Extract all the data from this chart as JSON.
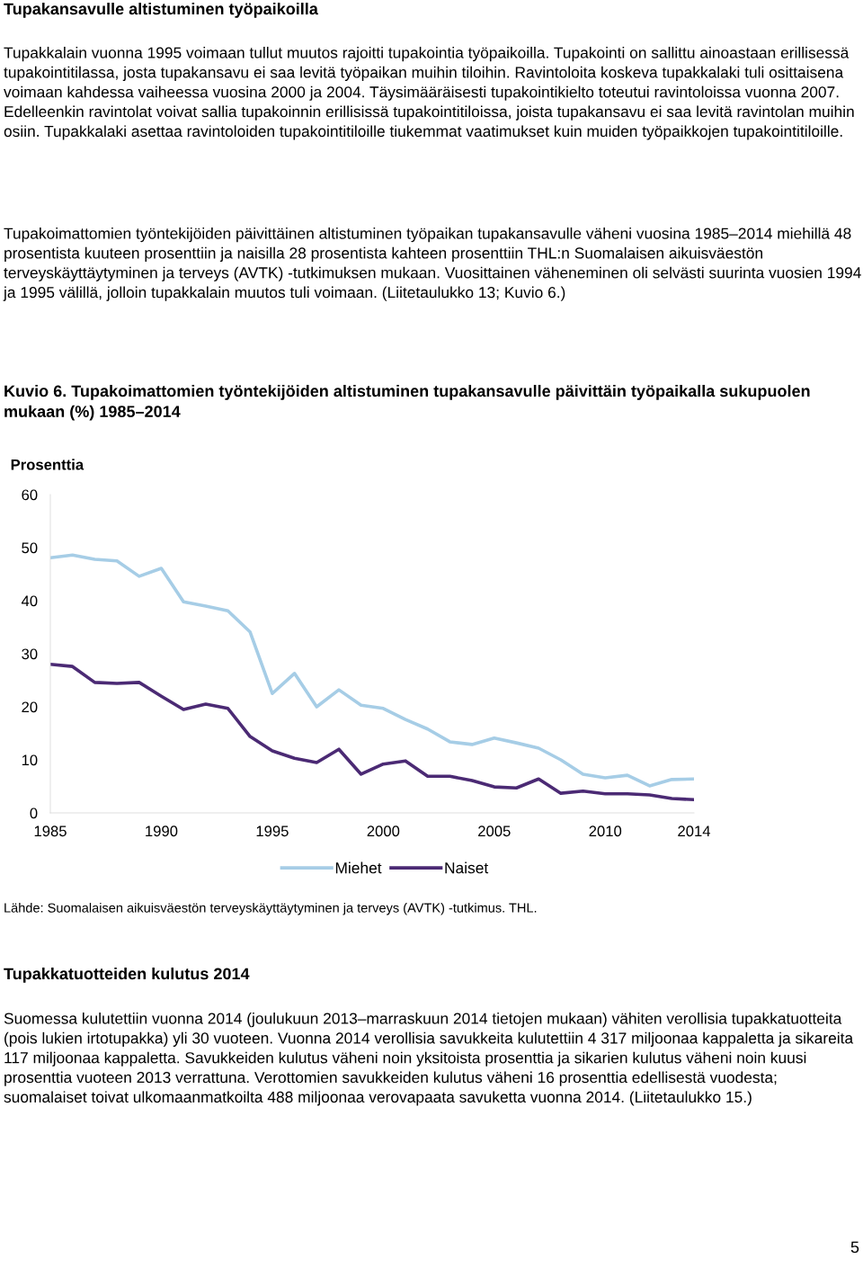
{
  "chart_data": {
    "type": "line",
    "title": "Kuvio 6. Tupakoimattomien työntekijöiden altistuminen tupakansavulle päivittäin työpaikalla sukupuolen mukaan (%) 1985–2014",
    "ylabel": "Prosenttia",
    "x": [
      1985,
      1986,
      1987,
      1988,
      1989,
      1990,
      1991,
      1992,
      1993,
      1994,
      1995,
      1996,
      1997,
      1998,
      1999,
      2000,
      2001,
      2002,
      2003,
      2004,
      2005,
      2006,
      2007,
      2008,
      2009,
      2010,
      2011,
      2012,
      2013,
      2014
    ],
    "series": [
      {
        "name": "Miehet",
        "color": "#a6cde6",
        "values": [
          48.1,
          48.6,
          47.8,
          47.5,
          44.6,
          46.1,
          39.8,
          39.0,
          38.1,
          34.1,
          22.5,
          26.3,
          20.0,
          23.2,
          20.3,
          19.7,
          17.6,
          15.8,
          13.4,
          12.9,
          14.1,
          13.2,
          12.2,
          10.0,
          7.3,
          6.6,
          7.1,
          5.1,
          6.3,
          6.4
        ]
      },
      {
        "name": "Naiset",
        "color": "#4b2a74",
        "values": [
          28.0,
          27.6,
          24.6,
          24.4,
          24.6,
          22.0,
          19.5,
          20.5,
          19.7,
          14.4,
          11.7,
          10.3,
          9.5,
          12.0,
          7.3,
          9.2,
          9.8,
          6.9,
          6.9,
          6.1,
          4.9,
          4.7,
          6.4,
          3.7,
          4.1,
          3.6,
          3.6,
          3.4,
          2.7,
          2.5
        ]
      }
    ],
    "xlim": [
      1985,
      2014
    ],
    "xticks": [
      1985,
      1990,
      1995,
      2000,
      2005,
      2010,
      2014
    ],
    "ylim": [
      0,
      60
    ],
    "yticks": [
      0,
      10,
      20,
      30,
      40,
      50,
      60
    ],
    "grid": false,
    "legend": "bottom",
    "annotations": [
      "Tupakansavulle altistuminen työpaikoilla",
      "Tupakkalain vuonna 1995 voimaan tullut muutos rajoitti tupakointia työpaikoilla. Tupakointi on sallittu ainoastaan erillisessä tupakointitilassa, josta tupakansavu ei saa levitä työpaikan muihin tiloihin. Ravintoloita koskeva tupakkalaki tuli osittaisena voimaan kahdessa vaiheessa vuosina 2000 ja 2004. Täysimääräisesti tupakointikielto toteutui ravintoloissa vuonna 2007. Edelleenkin ravintolat voivat sallia tupakoinnin erillisissä tupakointitiloissa, joista tupakansavu ei saa levitä ravintolan muihin osiin. Tupakkalaki asettaa ravintoloiden tupakointitiloille tiukemmat vaatimukset kuin muiden työpaikkojen tupakointitiloille.",
      "Tupakoimattomien työntekijöiden päivittäinen altistuminen työpaikan tupakansavulle väheni vuosina 1985–2014 miehillä 48 prosentista kuuteen prosenttiin ja naisilla 28 prosentista kahteen prosenttiin THL:n Suomalaisen aikuisväestön terveyskäyttäytyminen ja terveys (AVTK) -tutkimuksen mukaan. Vuosittainen väheneminen oli selvästi suurinta vuosien 1994 ja 1995 välillä, jolloin tupakkalain muutos tuli voimaan. (Liitetaulukko 13; Kuvio 6.)",
      "Lähde: Suomalaisen aikuisväestön terveyskäyttäytyminen ja terveys (AVTK) -tutkimus. THL.",
      "Tupakkatuotteiden kulutus 2014",
      "Suomessa kulutettiin vuonna 2014 (joulukuun 2013–marraskuun 2014 tietojen mukaan) vähiten verollisia tupakkatuotteita (pois lukien irtotupakka) yli 30 vuoteen. Vuonna 2014 verollisia savukkeita kulutettiin 4 317 miljoonaa kappaletta ja sikareita 117 miljoonaa kappaletta. Savukkeiden kulutus väheni noin yksitoista prosenttia ja sikarien kulutus väheni noin kuusi prosenttia vuoteen 2013 verrattuna. Verottomien savukkeiden kulutus väheni 16 prosenttia edellisestä vuodesta; suomalaiset toivat ulkomaanmatkoilta 488 miljoonaa verovapaata savuketta vuonna 2014. (Liitetaulukko 15.)",
      "5"
    ]
  }
}
